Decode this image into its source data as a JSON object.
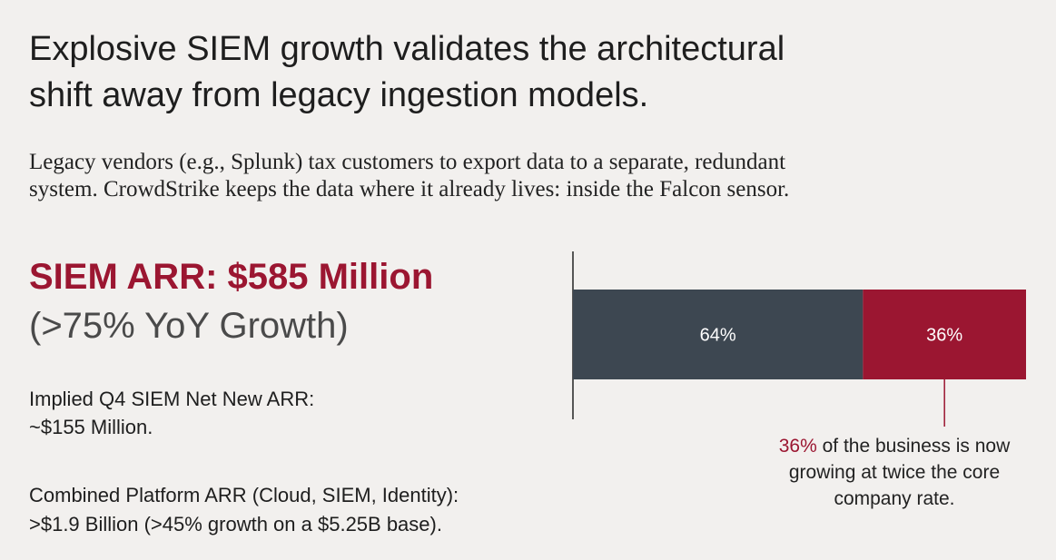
{
  "header": {
    "title": [
      "Explosive SIEM growth validates the architectural",
      "shift away from legacy ingestion models."
    ],
    "subtitle": [
      "Legacy vendors (e.g., Splunk) tax customers to export data to a separate, redundant",
      "system. CrowdStrike keeps the data where it already lives: inside the Falcon sensor."
    ]
  },
  "metrics": {
    "headline": "SIEM ARR: $585 Million",
    "growth": "(>75% YoY Growth)",
    "net_new": [
      "Implied Q4 SIEM Net New ARR:",
      "~$155 Million."
    ],
    "combined": [
      "Combined Platform ARR (Cloud, SIEM, Identity):",
      ">$1.9 Billion (>45% growth on a $5.25B base)."
    ]
  },
  "chart_data": {
    "type": "stacked-bar",
    "orientation": "horizontal",
    "values": [
      64,
      36
    ],
    "value_labels": [
      "64%",
      "36%"
    ],
    "colors": [
      "#3d4751",
      "#9b1631"
    ],
    "annotation": {
      "highlight": "36%",
      "text": [
        "of the business is now",
        "growing at twice the core",
        "company rate."
      ]
    }
  }
}
